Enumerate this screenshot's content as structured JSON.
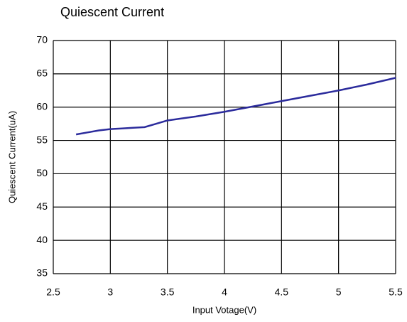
{
  "chart_data": {
    "type": "line",
    "title": "Quiescent Current",
    "x_label": "Input Votage(V)",
    "y_label": "Quiescent Current(uA)",
    "x": [
      2.7,
      2.8,
      2.9,
      3.0,
      3.1,
      3.2,
      3.3,
      3.4,
      3.5,
      3.75,
      4.0,
      4.25,
      4.5,
      4.75,
      5.0,
      5.25,
      5.5
    ],
    "series": [
      {
        "name": "Quiescent Current",
        "color": "#2b2b9c",
        "values": [
          55.9,
          56.2,
          56.5,
          56.7,
          56.8,
          56.9,
          57.0,
          57.5,
          58.0,
          58.6,
          59.3,
          60.1,
          60.9,
          61.7,
          62.5,
          63.4,
          64.4
        ]
      }
    ],
    "xlim": [
      2.5,
      5.5
    ],
    "xticks": [
      2.5,
      3,
      3.5,
      4,
      4.5,
      5,
      5.5
    ],
    "ylim": [
      35,
      70
    ],
    "yticks": [
      35,
      40,
      45,
      50,
      55,
      60,
      65,
      70
    ],
    "grid": true
  }
}
